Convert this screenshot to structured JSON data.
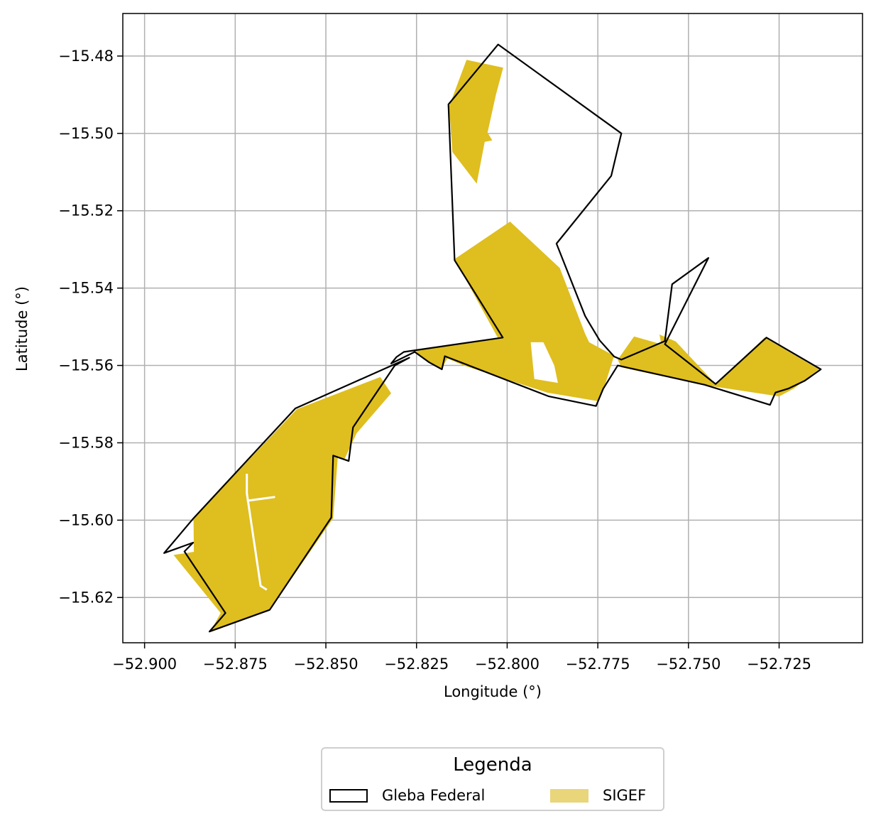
{
  "chart_data": {
    "type": "map",
    "xlabel": "Longitude (°)",
    "ylabel": "Latitude (°)",
    "xlim": [
      -52.906,
      -52.702
    ],
    "ylim": [
      -15.6317,
      -15.469
    ],
    "xticks": [
      -52.9,
      -52.875,
      -52.85,
      -52.825,
      -52.8,
      -52.775,
      -52.75,
      -52.725
    ],
    "xtick_labels": [
      "−52.900",
      "−52.875",
      "−52.850",
      "−52.825",
      "−52.800",
      "−52.775",
      "−52.750",
      "−52.725"
    ],
    "yticks": [
      -15.48,
      -15.5,
      -15.52,
      -15.54,
      -15.56,
      -15.58,
      -15.6,
      -15.62
    ],
    "ytick_labels": [
      "−15.48",
      "−15.50",
      "−15.52",
      "−15.54",
      "−15.56",
      "−15.58",
      "−15.60",
      "−15.62"
    ],
    "grid": true,
    "legend_position": "bottom-center",
    "layers": [
      {
        "name": "SIGEF",
        "color": "#dfbe1f",
        "legend_color": "#e9d57a",
        "polygons": [
          [
            [
              -52.8112,
              -15.481
            ],
            [
              -52.8011,
              -15.483
            ],
            [
              -52.8031,
              -15.49
            ],
            [
              -52.8054,
              -15.4998
            ],
            [
              -52.8041,
              -15.5018
            ],
            [
              -52.8062,
              -15.5022
            ],
            [
              -52.8084,
              -15.513
            ],
            [
              -52.8151,
              -15.5048
            ],
            [
              -52.816,
              -15.493
            ]
          ],
          [
            [
              -52.8145,
              -15.5325
            ],
            [
              -52.7992,
              -15.5228
            ],
            [
              -52.7855,
              -15.5348
            ],
            [
              -52.7785,
              -15.5518
            ],
            [
              -52.7774,
              -15.554
            ],
            [
              -52.7705,
              -15.5575
            ],
            [
              -52.773,
              -15.565
            ],
            [
              -52.7752,
              -15.5692
            ],
            [
              -52.789,
              -15.567
            ],
            [
              -52.812,
              -15.56
            ],
            [
              -52.8165,
              -15.5582
            ],
            [
              -52.8182,
              -15.561
            ],
            [
              -52.8215,
              -15.559
            ],
            [
              -52.8259,
              -15.5562
            ],
            [
              -52.8025,
              -15.553
            ]
          ],
          [
            [
              -52.765,
              -15.5525
            ],
            [
              -52.7575,
              -15.5545
            ],
            [
              -52.758,
              -15.552
            ],
            [
              -52.7535,
              -15.5538
            ],
            [
              -52.7425,
              -15.5648
            ],
            [
              -52.729,
              -15.5528
            ],
            [
              -52.714,
              -15.561
            ],
            [
              -52.721,
              -15.566
            ],
            [
              -52.725,
              -15.568
            ],
            [
              -52.746,
              -15.565
            ],
            [
              -52.7685,
              -15.5605
            ],
            [
              -52.7695,
              -15.5585
            ]
          ],
          [
            [
              -52.835,
              -15.563
            ],
            [
              -52.832,
              -15.5672
            ],
            [
              -52.8415,
              -15.5775
            ],
            [
              -52.845,
              -15.5845
            ],
            [
              -52.8467,
              -15.5835
            ],
            [
              -52.848,
              -15.5995
            ],
            [
              -52.8655,
              -15.6233
            ],
            [
              -52.882,
              -15.629
            ],
            [
              -52.879,
              -15.624
            ],
            [
              -52.892,
              -15.609
            ],
            [
              -52.8864,
              -15.6082
            ],
            [
              -52.8865,
              -15.5995
            ],
            [
              -52.858,
              -15.5713
            ]
          ]
        ]
      },
      {
        "name": "Gleba Federal",
        "color": "#000000",
        "fill": "none",
        "polygons": [
          [
            [
              -52.8025,
              -15.477
            ],
            [
              -52.7685,
              -15.5
            ],
            [
              -52.7713,
              -15.511
            ],
            [
              -52.7864,
              -15.5285
            ],
            [
              -52.7785,
              -15.5472
            ],
            [
              -52.7774,
              -15.549
            ],
            [
              -52.7745,
              -15.5535
            ],
            [
              -52.7705,
              -15.5577
            ],
            [
              -52.7685,
              -15.5585
            ],
            [
              -52.7565,
              -15.5537
            ],
            [
              -52.7545,
              -15.539
            ],
            [
              -52.7445,
              -15.5322
            ],
            [
              -52.7565,
              -15.5545
            ],
            [
              -52.7425,
              -15.5648
            ],
            [
              -52.7285,
              -15.5528
            ],
            [
              -52.7135,
              -15.561
            ],
            [
              -52.718,
              -15.564
            ],
            [
              -52.7225,
              -15.566
            ],
            [
              -52.726,
              -15.567
            ],
            [
              -52.7275,
              -15.5702
            ],
            [
              -52.7455,
              -15.565
            ],
            [
              -52.7695,
              -15.56
            ],
            [
              -52.7735,
              -15.566
            ],
            [
              -52.7755,
              -15.5705
            ],
            [
              -52.7885,
              -15.568
            ],
            [
              -52.8172,
              -15.5576
            ],
            [
              -52.818,
              -15.561
            ],
            [
              -52.8215,
              -15.5592
            ],
            [
              -52.8255,
              -15.5565
            ],
            [
              -52.832,
              -15.5595
            ],
            [
              -52.8305,
              -15.5578
            ],
            [
              -52.8285,
              -15.5565
            ],
            [
              -52.8012,
              -15.5528
            ],
            [
              -52.8145,
              -15.5328
            ],
            [
              -52.8162,
              -15.4925
            ]
          ],
          [
            [
              -52.827,
              -15.558
            ],
            [
              -52.831,
              -15.56
            ],
            [
              -52.8425,
              -15.576
            ],
            [
              -52.8437,
              -15.5847
            ],
            [
              -52.848,
              -15.5833
            ],
            [
              -52.8485,
              -15.5993
            ],
            [
              -52.8655,
              -15.6232
            ],
            [
              -52.8821,
              -15.6288
            ],
            [
              -52.8777,
              -15.624
            ],
            [
              -52.889,
              -15.6081
            ],
            [
              -52.8866,
              -15.6058
            ],
            [
              -52.8946,
              -15.6085
            ],
            [
              -52.8865,
              -15.5995
            ],
            [
              -52.8584,
              -15.5711
            ]
          ]
        ]
      }
    ],
    "white_lines": [
      [
        [
          -52.8718,
          -15.588
        ],
        [
          -52.8718,
          -15.593
        ],
        [
          -52.868,
          -15.617
        ],
        [
          -52.8663,
          -15.618
        ]
      ],
      [
        [
          -52.8718,
          -15.595
        ],
        [
          -52.864,
          -15.594
        ]
      ]
    ],
    "white_holes": [
      [
        [
          -52.7935,
          -15.554
        ],
        [
          -52.79,
          -15.554
        ],
        [
          -52.787,
          -15.56
        ],
        [
          -52.786,
          -15.5645
        ],
        [
          -52.7925,
          -15.5635
        ]
      ]
    ]
  },
  "legend": {
    "title": "Legenda",
    "items": [
      {
        "label": "Gleba Federal"
      },
      {
        "label": "SIGEF"
      }
    ]
  }
}
